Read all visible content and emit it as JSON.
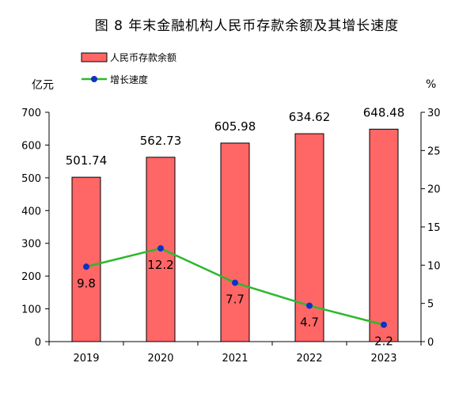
{
  "chart_data": {
    "type": "bar",
    "title": "图 8  年末金融机构人民币存款余额及其增长速度",
    "categories": [
      "2019",
      "2020",
      "2021",
      "2022",
      "2023"
    ],
    "series": [
      {
        "name": "人民币存款余额",
        "type": "bar",
        "axis": "left",
        "values": [
          501.74,
          562.73,
          605.98,
          634.62,
          648.48
        ],
        "labels": [
          "501.74",
          "562.73",
          "605.98",
          "634.62",
          "648.48"
        ],
        "color": "#ff6666"
      },
      {
        "name": "增长速度",
        "type": "line",
        "axis": "right",
        "values": [
          9.8,
          12.2,
          7.7,
          4.7,
          2.2
        ],
        "labels": [
          "9.8",
          "12.2",
          "7.7",
          "4.7",
          "2.2"
        ],
        "color": "#2db82d",
        "marker_color": "#1030c8"
      }
    ],
    "y_left": {
      "unit": "亿元",
      "range": [
        0,
        700
      ],
      "ticks": [
        "0",
        "100",
        "200",
        "300",
        "400",
        "500",
        "600",
        "700"
      ]
    },
    "y_right": {
      "unit": "%",
      "range": [
        0,
        30
      ],
      "ticks": [
        "0",
        "5",
        "10",
        "15",
        "20",
        "25",
        "30"
      ]
    },
    "legend_position": "top-left"
  }
}
